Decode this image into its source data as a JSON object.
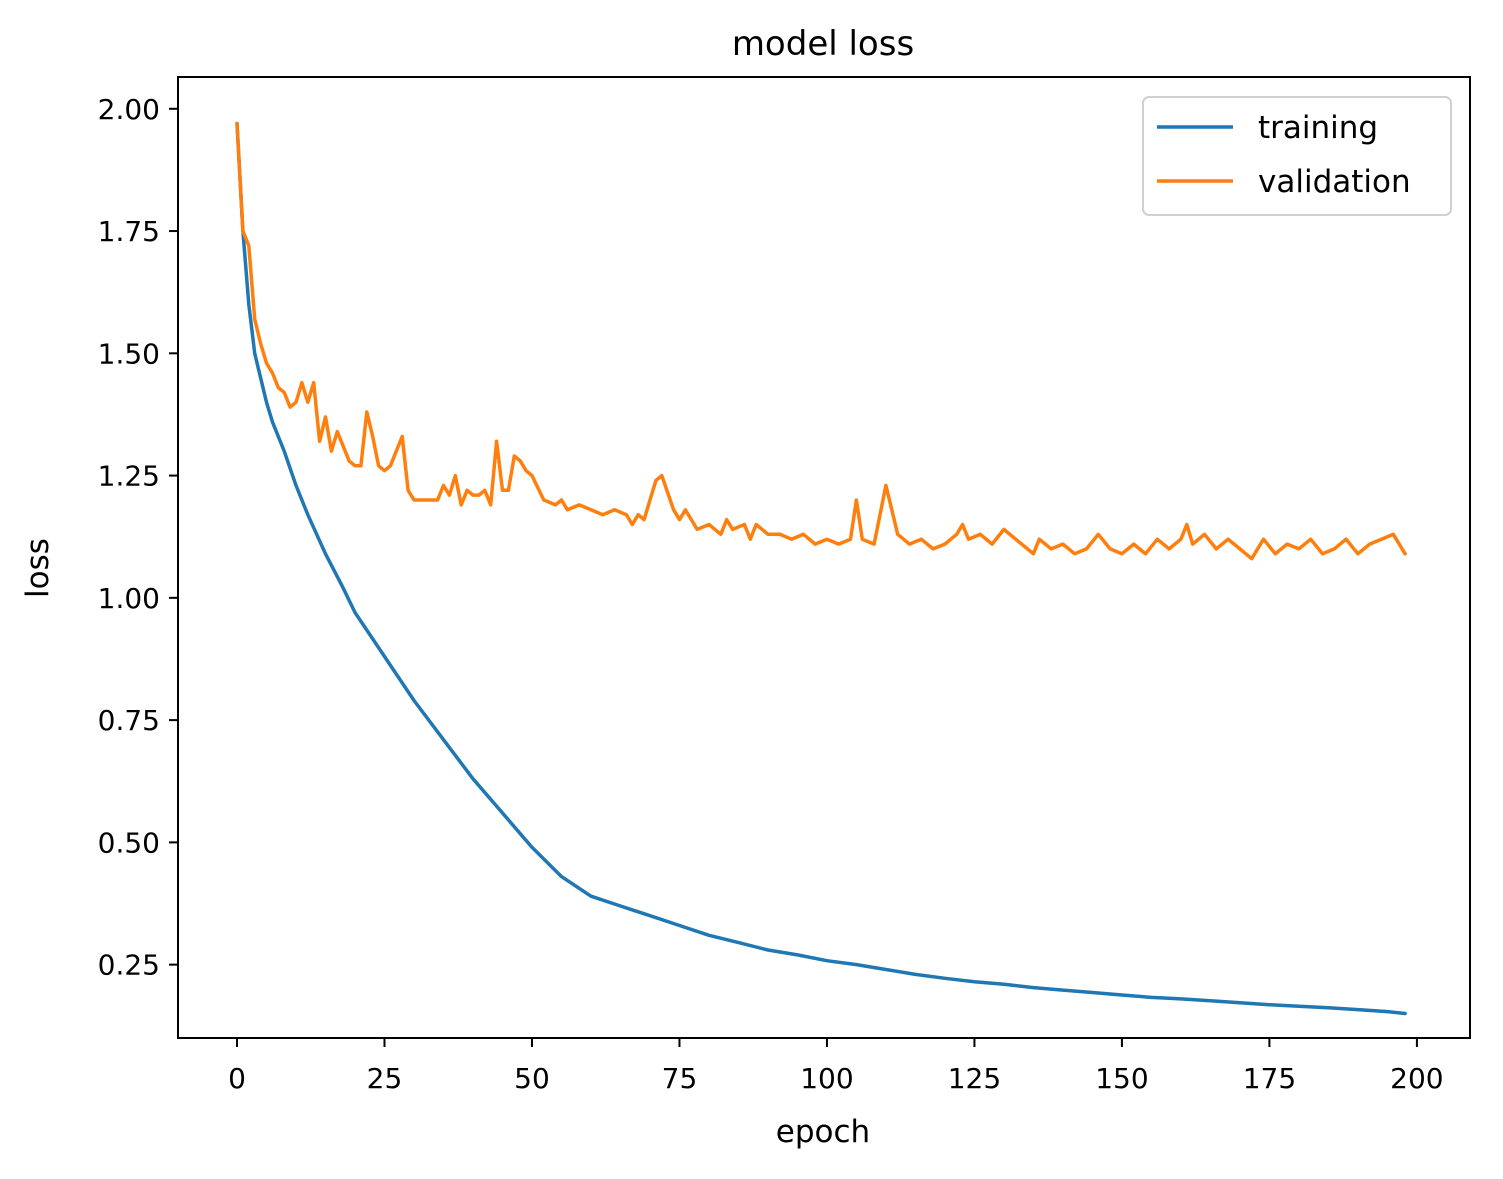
{
  "chart_data": {
    "type": "line",
    "title": "model loss",
    "xlabel": "epoch",
    "ylabel": "loss",
    "xlim": [
      -10,
      209
    ],
    "ylim": [
      0.1,
      2.065
    ],
    "x_ticks": [
      0,
      25,
      50,
      75,
      100,
      125,
      150,
      175,
      200
    ],
    "x_tick_labels": [
      "0",
      "25",
      "50",
      "75",
      "100",
      "125",
      "150",
      "175",
      "200"
    ],
    "y_ticks": [
      0.25,
      0.5,
      0.75,
      1.0,
      1.25,
      1.5,
      1.75,
      2.0
    ],
    "y_tick_labels": [
      "0.25",
      "0.50",
      "0.75",
      "1.00",
      "1.25",
      "1.50",
      "1.75",
      "2.00"
    ],
    "legend_position": "top-right",
    "grid": false,
    "series": [
      {
        "name": "training",
        "color": "#1f77b4",
        "x": [
          0,
          1,
          2,
          3,
          4,
          5,
          6,
          8,
          10,
          12,
          15,
          18,
          20,
          25,
          30,
          35,
          40,
          45,
          50,
          55,
          60,
          65,
          70,
          75,
          80,
          85,
          90,
          95,
          100,
          105,
          110,
          115,
          120,
          125,
          130,
          135,
          140,
          145,
          150,
          155,
          160,
          165,
          170,
          175,
          180,
          185,
          190,
          195,
          198
        ],
        "y": [
          1.97,
          1.75,
          1.6,
          1.5,
          1.45,
          1.4,
          1.36,
          1.3,
          1.23,
          1.17,
          1.09,
          1.02,
          0.97,
          0.88,
          0.79,
          0.71,
          0.63,
          0.56,
          0.49,
          0.43,
          0.39,
          0.37,
          0.35,
          0.33,
          0.31,
          0.295,
          0.28,
          0.27,
          0.258,
          0.25,
          0.24,
          0.23,
          0.222,
          0.215,
          0.21,
          0.203,
          0.198,
          0.193,
          0.188,
          0.183,
          0.18,
          0.176,
          0.172,
          0.168,
          0.165,
          0.162,
          0.158,
          0.154,
          0.15
        ]
      },
      {
        "name": "validation",
        "color": "#ff7f0e",
        "x": [
          0,
          1,
          2,
          3,
          4,
          5,
          6,
          7,
          8,
          9,
          10,
          11,
          12,
          13,
          14,
          15,
          16,
          17,
          18,
          19,
          20,
          21,
          22,
          23,
          24,
          25,
          26,
          27,
          28,
          29,
          30,
          32,
          34,
          35,
          36,
          37,
          38,
          39,
          40,
          41,
          42,
          43,
          44,
          45,
          46,
          47,
          48,
          49,
          50,
          52,
          54,
          55,
          56,
          58,
          60,
          62,
          64,
          66,
          67,
          68,
          69,
          70,
          71,
          72,
          74,
          75,
          76,
          78,
          80,
          82,
          83,
          84,
          86,
          87,
          88,
          90,
          92,
          94,
          96,
          98,
          100,
          102,
          104,
          105,
          106,
          108,
          110,
          112,
          114,
          116,
          118,
          120,
          122,
          123,
          124,
          126,
          128,
          130,
          132,
          134,
          135,
          136,
          138,
          140,
          142,
          144,
          146,
          148,
          150,
          152,
          154,
          156,
          158,
          160,
          161,
          162,
          164,
          166,
          168,
          170,
          172,
          174,
          176,
          178,
          180,
          182,
          184,
          186,
          188,
          190,
          192,
          194,
          196,
          198
        ],
        "y": [
          1.97,
          1.75,
          1.72,
          1.57,
          1.52,
          1.48,
          1.46,
          1.43,
          1.42,
          1.39,
          1.4,
          1.44,
          1.4,
          1.44,
          1.32,
          1.37,
          1.3,
          1.34,
          1.31,
          1.28,
          1.27,
          1.27,
          1.38,
          1.33,
          1.27,
          1.26,
          1.27,
          1.3,
          1.33,
          1.22,
          1.2,
          1.2,
          1.2,
          1.23,
          1.21,
          1.25,
          1.19,
          1.22,
          1.21,
          1.21,
          1.22,
          1.19,
          1.32,
          1.22,
          1.22,
          1.29,
          1.28,
          1.26,
          1.25,
          1.2,
          1.19,
          1.2,
          1.18,
          1.19,
          1.18,
          1.17,
          1.18,
          1.17,
          1.15,
          1.17,
          1.16,
          1.2,
          1.24,
          1.25,
          1.18,
          1.16,
          1.18,
          1.14,
          1.15,
          1.13,
          1.16,
          1.14,
          1.15,
          1.12,
          1.15,
          1.13,
          1.13,
          1.12,
          1.13,
          1.11,
          1.12,
          1.11,
          1.12,
          1.2,
          1.12,
          1.11,
          1.23,
          1.13,
          1.11,
          1.12,
          1.1,
          1.11,
          1.13,
          1.15,
          1.12,
          1.13,
          1.11,
          1.14,
          1.12,
          1.1,
          1.09,
          1.12,
          1.1,
          1.11,
          1.09,
          1.1,
          1.13,
          1.1,
          1.09,
          1.11,
          1.09,
          1.12,
          1.1,
          1.12,
          1.15,
          1.11,
          1.13,
          1.1,
          1.12,
          1.1,
          1.08,
          1.12,
          1.09,
          1.11,
          1.1,
          1.12,
          1.09,
          1.1,
          1.12,
          1.09,
          1.11,
          1.12,
          1.13,
          1.09
        ]
      }
    ]
  }
}
